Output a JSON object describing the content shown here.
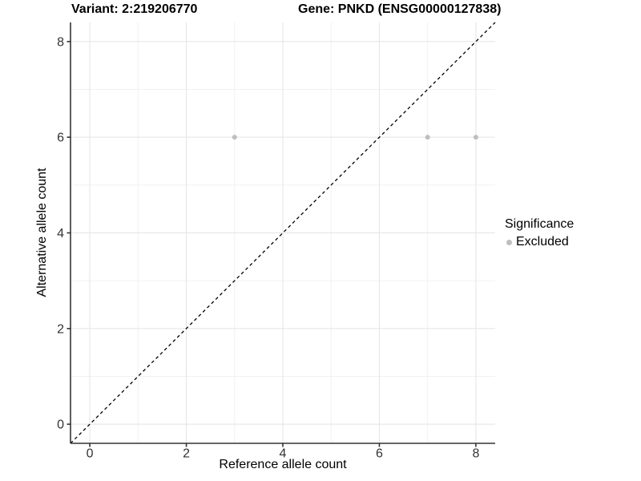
{
  "chart_data": {
    "type": "scatter",
    "title_left": "Variant: 2:219206770",
    "title_right": "Gene: PNKD (ENSG00000127838)",
    "xlabel": "Reference allele count",
    "ylabel": "Alternative allele count",
    "xlim": [
      -0.4,
      8.4
    ],
    "ylim": [
      -0.4,
      8.4
    ],
    "x_ticks": [
      0,
      2,
      4,
      6,
      8
    ],
    "y_ticks": [
      0,
      2,
      4,
      6,
      8
    ],
    "x_minor_ticks": [
      1,
      3,
      5,
      7
    ],
    "y_minor_ticks": [
      1,
      3,
      5,
      7
    ],
    "grid": "major and minor gridlines on, white panel background",
    "reference_line": {
      "type": "identity",
      "slope": 1,
      "intercept": 0,
      "style": "dashed",
      "color": "#000000"
    },
    "series": [
      {
        "name": "Excluded",
        "color": "#BEBEBE",
        "points": [
          {
            "x": 3,
            "y": 6
          },
          {
            "x": 7,
            "y": 6
          },
          {
            "x": 8,
            "y": 6
          }
        ]
      }
    ],
    "legend": {
      "title": "Significance",
      "position": "right",
      "items": [
        {
          "label": "Excluded",
          "color": "#BEBEBE"
        }
      ]
    },
    "colors": {
      "background": "#FFFFFF",
      "grid_major": "#E4E4E4",
      "grid_minor": "#F1F1F1",
      "axis_line": "#333333",
      "tick_label": "#333333",
      "point": "#BEBEBE"
    }
  }
}
